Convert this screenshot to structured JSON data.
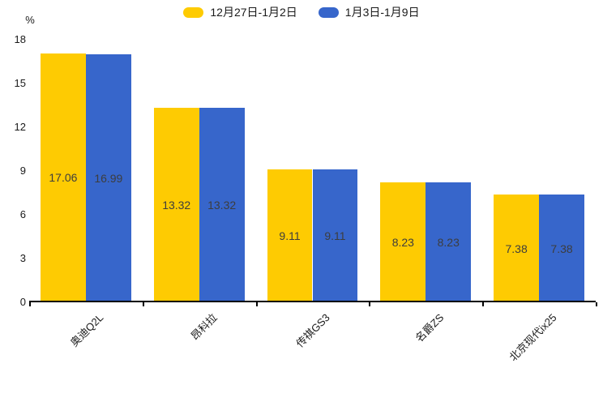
{
  "chart_data": {
    "type": "bar",
    "title": "",
    "categories": [
      "奥迪Q2L",
      "昂科拉",
      "传祺GS3",
      "名爵ZS",
      "北京现代ix25"
    ],
    "series": [
      {
        "name": "12月27日-1月2日",
        "color": "#FECB02",
        "values": [
          17.06,
          13.32,
          9.11,
          8.23,
          7.38
        ]
      },
      {
        "name": "1月3日-1月9日",
        "color": "#3766CB",
        "values": [
          16.99,
          13.32,
          9.11,
          8.23,
          7.38
        ]
      }
    ],
    "xlabel": "",
    "ylabel": "%",
    "ylim": [
      0,
      18
    ],
    "yticks": [
      0,
      3,
      6,
      9,
      12,
      15,
      18
    ],
    "grid": false,
    "legend_position": "top",
    "value_labels_shown": true
  },
  "colors": {
    "background": "#FFFFFF",
    "axis": "#000000",
    "tick_label": "#1A1A1A",
    "value_label": "#3D3D3D",
    "category_label": "#1A1A1A",
    "legend_label": "#1A1A1A"
  }
}
